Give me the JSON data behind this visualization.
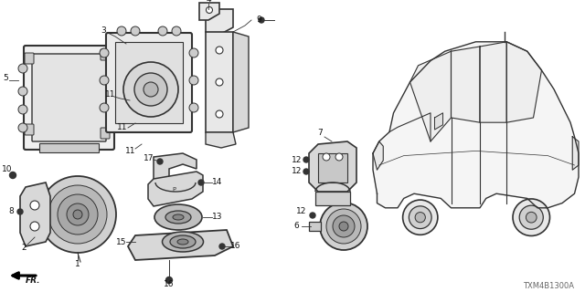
{
  "diagram_code": "TXM4B1300A",
  "bg_color": "#ffffff",
  "line_color": "#333333",
  "text_color": "#111111",
  "fig_w": 6.4,
  "fig_h": 3.2
}
